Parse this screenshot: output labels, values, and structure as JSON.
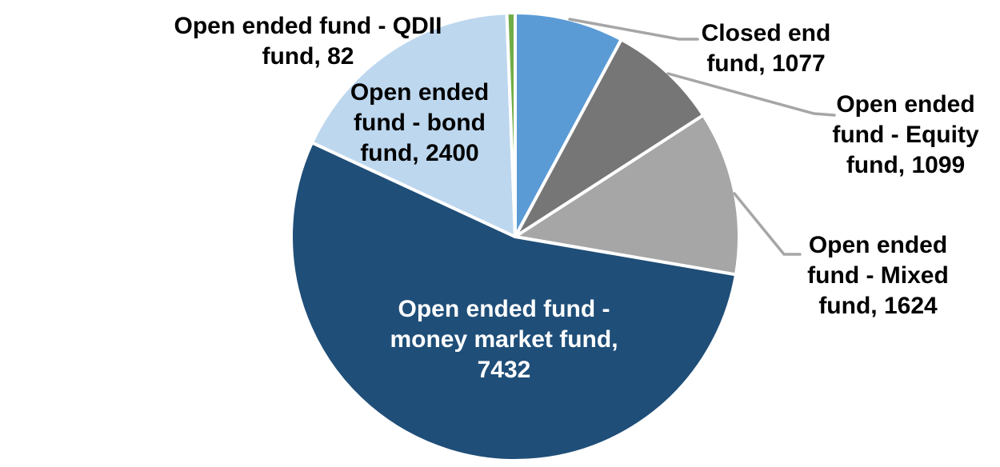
{
  "chart_data": {
    "type": "pie",
    "title": "",
    "legend_position": "none",
    "data_labels": "category-and-value, outside with leader lines; money market label inside slice",
    "start_angle_deg": 0,
    "direction": "clockwise",
    "total": 13714,
    "slices": [
      {
        "label": "Closed end fund",
        "value": 1077,
        "color": "#5B9BD5"
      },
      {
        "label": "Open ended fund - Equity fund",
        "value": 1099,
        "color": "#767676"
      },
      {
        "label": "Open ended fund - Mixed fund",
        "value": 1624,
        "color": "#A6A6A6"
      },
      {
        "label": "Open ended fund - money market fund",
        "value": 7432,
        "color": "#1F4E78"
      },
      {
        "label": "Open ended fund - bond fund",
        "value": 2400,
        "color": "#BDD7EE"
      },
      {
        "label": "Open ended fund - QDII fund",
        "value": 82,
        "color": "#70AD47"
      }
    ]
  },
  "labels": {
    "qdii": {
      "lines": [
        "Open ended fund - QDII",
        "fund, 82"
      ]
    },
    "bond": {
      "lines": [
        "Open ended",
        "fund - bond",
        "fund, 2400"
      ]
    },
    "closed_end": {
      "lines": [
        "Closed end",
        "fund, 1077"
      ]
    },
    "equity": {
      "lines": [
        "Open ended",
        "fund - Equity",
        "fund, 1099"
      ]
    },
    "mixed": {
      "lines": [
        "Open ended",
        "fund - Mixed",
        "fund, 1624"
      ]
    },
    "money_market": {
      "lines": [
        "Open ended fund -",
        "money market fund,",
        "7432"
      ]
    }
  },
  "colors": {
    "background": "#FFFFFF",
    "slice_border": "#FFFFFF",
    "leader_line": "#A6A6A6",
    "label_text": "#000000",
    "money_market_label_text": "#FFFFFF"
  }
}
